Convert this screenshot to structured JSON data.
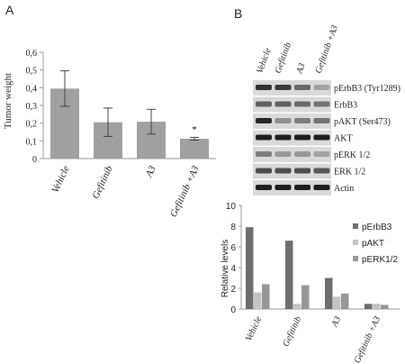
{
  "panels": {
    "a": "A",
    "b": "B"
  },
  "colors": {
    "barA": "#a0a0a0",
    "series1": "#6e6e6e",
    "series2": "#c4c4c4",
    "series3": "#979797",
    "axis": "#9a9a9a"
  },
  "blot": {
    "lanes": [
      "Vehicle",
      "Gefitinib",
      "A3",
      "Gefitinib +A3"
    ],
    "rows": [
      {
        "label": "pErbB3 (Tyr1289)",
        "intensity": [
          0.85,
          0.8,
          0.55,
          0.25
        ]
      },
      {
        "label": "ErbB3",
        "intensity": [
          0.6,
          0.6,
          0.55,
          0.5
        ]
      },
      {
        "label": "pAKT (Ser473)",
        "intensity": [
          0.9,
          0.35,
          0.45,
          0.5
        ]
      },
      {
        "label": "AKT",
        "intensity": [
          0.95,
          0.95,
          0.95,
          0.95
        ]
      },
      {
        "label": "pERK 1/2",
        "intensity": [
          0.45,
          0.3,
          0.3,
          0.25
        ]
      },
      {
        "label": "ERK 1/2",
        "intensity": [
          0.7,
          0.7,
          0.7,
          0.65
        ]
      },
      {
        "label": "Actin",
        "intensity": [
          0.95,
          0.95,
          0.95,
          0.95
        ]
      }
    ]
  },
  "chart_data": [
    {
      "type": "bar",
      "categories": [
        "Vehicle",
        "Gefitinib",
        "A3",
        "Gefitinib +A3"
      ],
      "values": [
        0.395,
        0.205,
        0.208,
        0.112
      ],
      "errors": [
        0.1,
        0.08,
        0.07,
        0.008
      ],
      "annotations": [
        "",
        "",
        "",
        "*"
      ],
      "ylabel": "Tumor weight",
      "ylim": [
        0,
        0.6
      ],
      "yticks": [
        "0",
        "0,1",
        "0,2",
        "0,3",
        "0,4",
        "0,5",
        "0,6"
      ],
      "grid": false
    },
    {
      "type": "bar",
      "categories": [
        "Vehicle",
        "Gefitinib",
        "A3",
        "Gefitinib +A3"
      ],
      "series": [
        {
          "name": "pErbB3",
          "values": [
            7.9,
            6.6,
            3.0,
            0.5
          ]
        },
        {
          "name": "pAKT",
          "values": [
            1.6,
            0.5,
            1.2,
            0.5
          ]
        },
        {
          "name": "pERK1/2",
          "values": [
            2.4,
            2.3,
            1.5,
            0.4
          ]
        }
      ],
      "ylabel": "Relative levels",
      "ylim": [
        0,
        10
      ],
      "yticks": [
        "0",
        "2",
        "4",
        "6",
        "8",
        "10"
      ],
      "legend": "right",
      "grid": false
    }
  ]
}
